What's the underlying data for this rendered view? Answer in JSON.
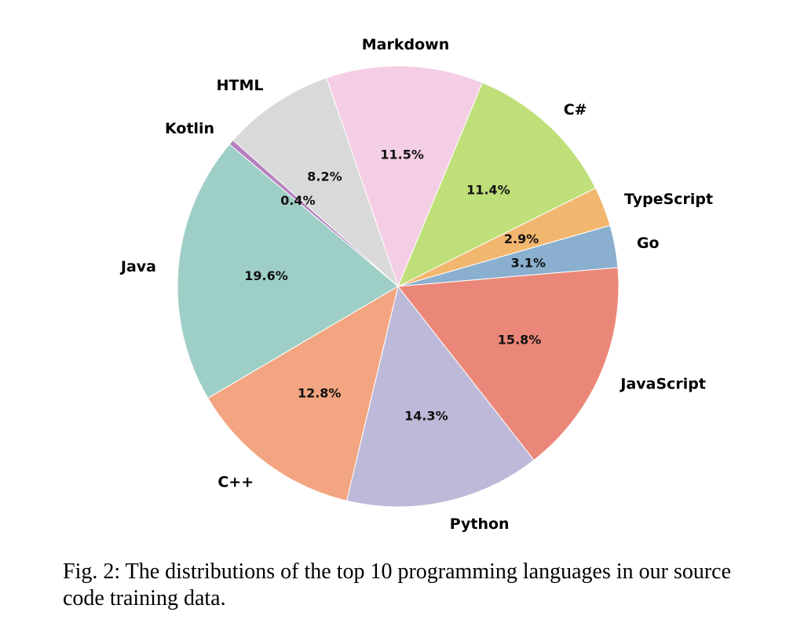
{
  "chart_data": {
    "type": "pie",
    "title": "",
    "slices": [
      {
        "label": "Go",
        "value": 3.1,
        "pct_label": "3.1%",
        "color": "#8aafcf"
      },
      {
        "label": "TypeScript",
        "value": 2.9,
        "pct_label": "2.9%",
        "color": "#f2b76f"
      },
      {
        "label": "C#",
        "value": 11.4,
        "pct_label": "11.4%",
        "color": "#bfdf78"
      },
      {
        "label": "Markdown",
        "value": 11.5,
        "pct_label": "11.5%",
        "color": "#f4cee4"
      },
      {
        "label": "HTML",
        "value": 8.2,
        "pct_label": "8.2%",
        "color": "#d9d9d9"
      },
      {
        "label": "Kotlin",
        "value": 0.4,
        "pct_label": "0.4%",
        "color": "#b582c0"
      },
      {
        "label": "Java",
        "value": 19.6,
        "pct_label": "19.6%",
        "color": "#9ecfc6"
      },
      {
        "label": "C++",
        "value": 12.8,
        "pct_label": "12.8%",
        "color": "#f2a580"
      },
      {
        "label": "Python",
        "value": 14.3,
        "pct_label": "14.3%",
        "color": "#bdb9d8"
      },
      {
        "label": "JavaScript",
        "value": 15.8,
        "pct_label": "15.8%",
        "color": "#eb8778"
      }
    ]
  },
  "caption": "Fig. 2: The distributions of the top 10 programming languages in our source code training data."
}
